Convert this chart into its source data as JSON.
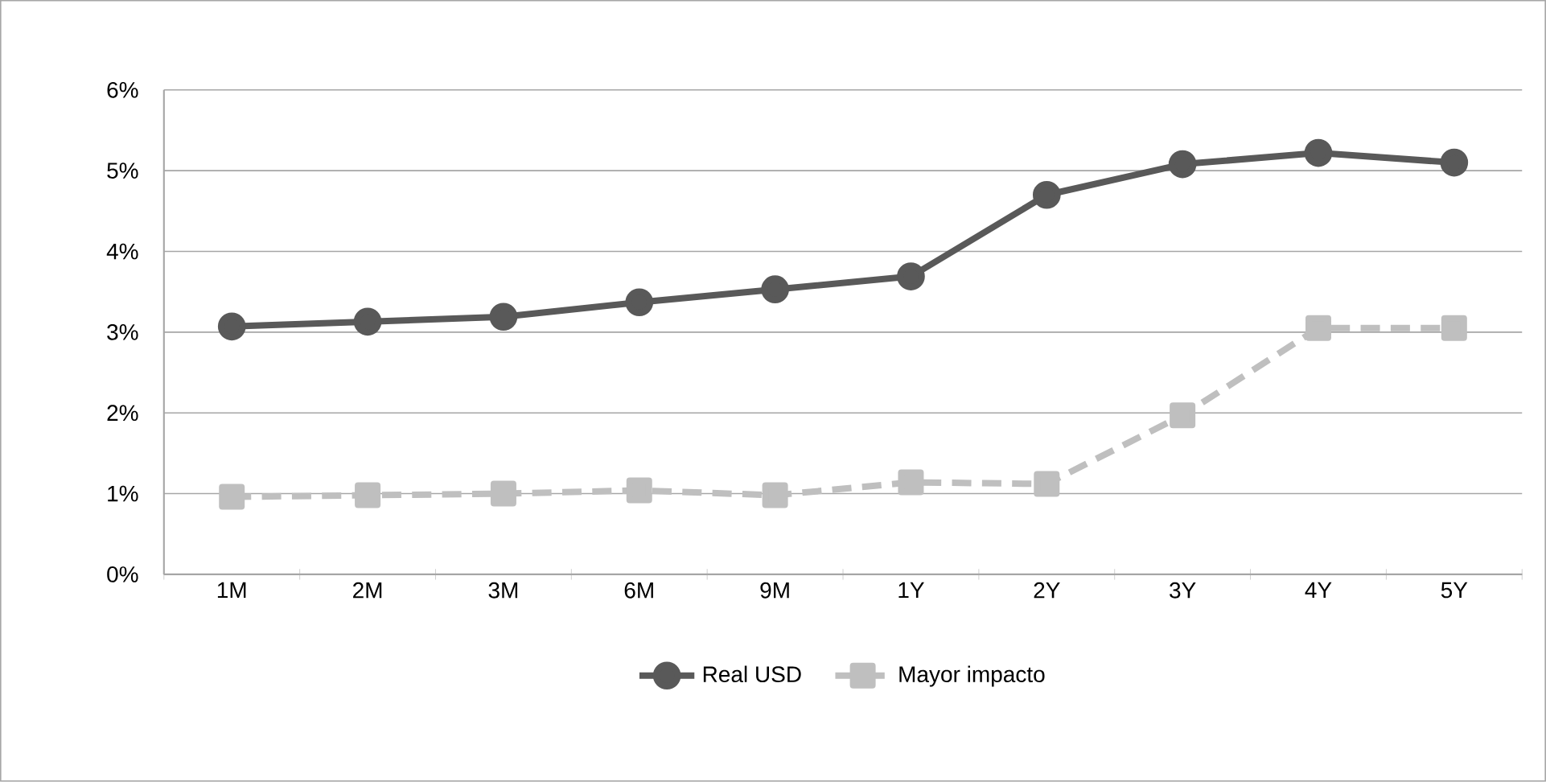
{
  "chart_data": {
    "type": "line",
    "categories": [
      "1M",
      "2M",
      "3M",
      "6M",
      "9M",
      "1Y",
      "2Y",
      "3Y",
      "4Y",
      "5Y"
    ],
    "series": [
      {
        "name": "Real USD",
        "color": "#595959",
        "marker": "circle",
        "line_style": "solid",
        "values": [
          3.07,
          3.13,
          3.19,
          3.37,
          3.53,
          3.69,
          4.7,
          5.08,
          5.22,
          5.1
        ]
      },
      {
        "name": "Mayor impacto",
        "color": "#bfbfbf",
        "marker": "square",
        "line_style": "dashed",
        "values": [
          0.96,
          0.98,
          1.0,
          1.04,
          0.98,
          1.14,
          1.12,
          1.97,
          3.05,
          3.05
        ]
      }
    ],
    "ylim": [
      0,
      6
    ],
    "yticks": [
      {
        "value": 0,
        "label": "0%"
      },
      {
        "value": 1,
        "label": "1%"
      },
      {
        "value": 2,
        "label": "2%"
      },
      {
        "value": 3,
        "label": "3%"
      },
      {
        "value": 4,
        "label": "4%"
      },
      {
        "value": 5,
        "label": "5%"
      },
      {
        "value": 6,
        "label": "6%"
      }
    ],
    "grid": "y",
    "legend": "bottom"
  }
}
